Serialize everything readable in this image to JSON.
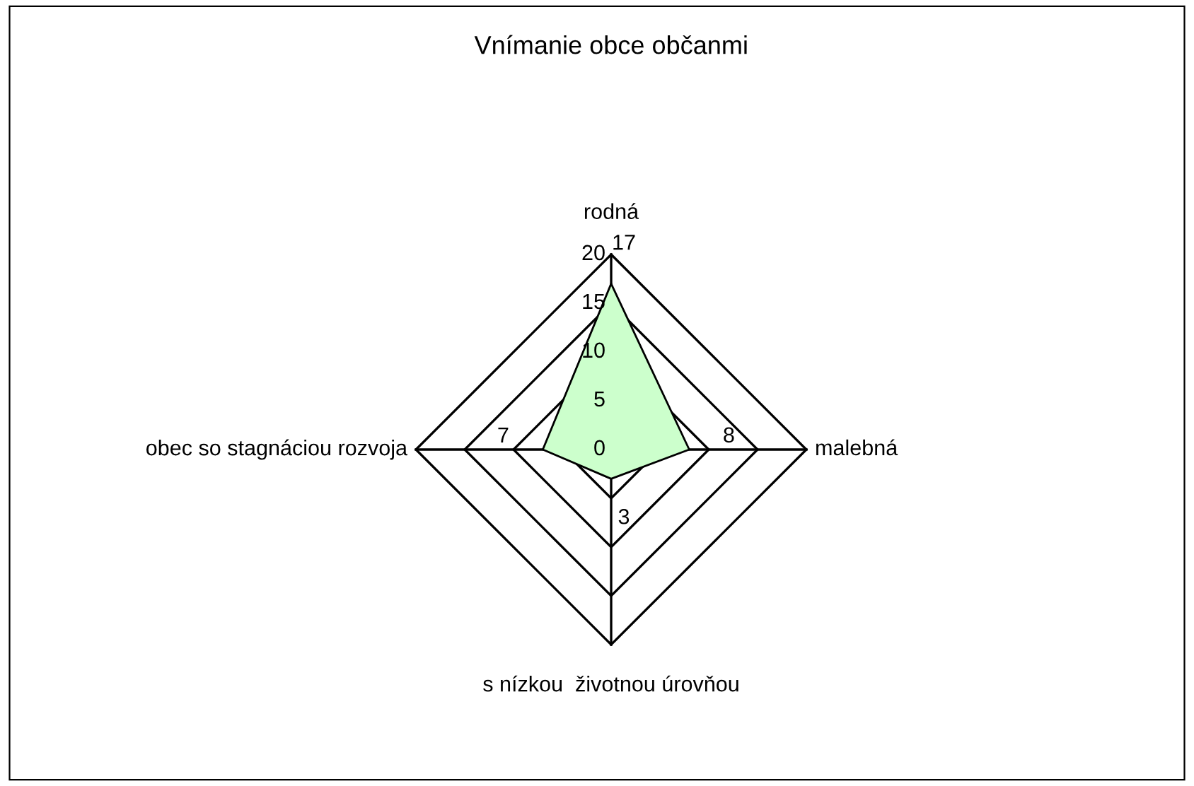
{
  "chart_data": {
    "type": "radar",
    "title": "Vnímanie obce občanmi",
    "categories": [
      "rodná",
      "malebná",
      "s nízkou  životnou úrovňou",
      "obec so stagnáciou rozvoja"
    ],
    "series": [
      {
        "color": "#ccffcc",
        "values": [
          17,
          8,
          3,
          7
        ]
      }
    ],
    "ylim": [
      0,
      20
    ],
    "yticks": [
      0,
      5,
      10,
      15,
      20
    ],
    "grid": true,
    "data_labels": true
  }
}
